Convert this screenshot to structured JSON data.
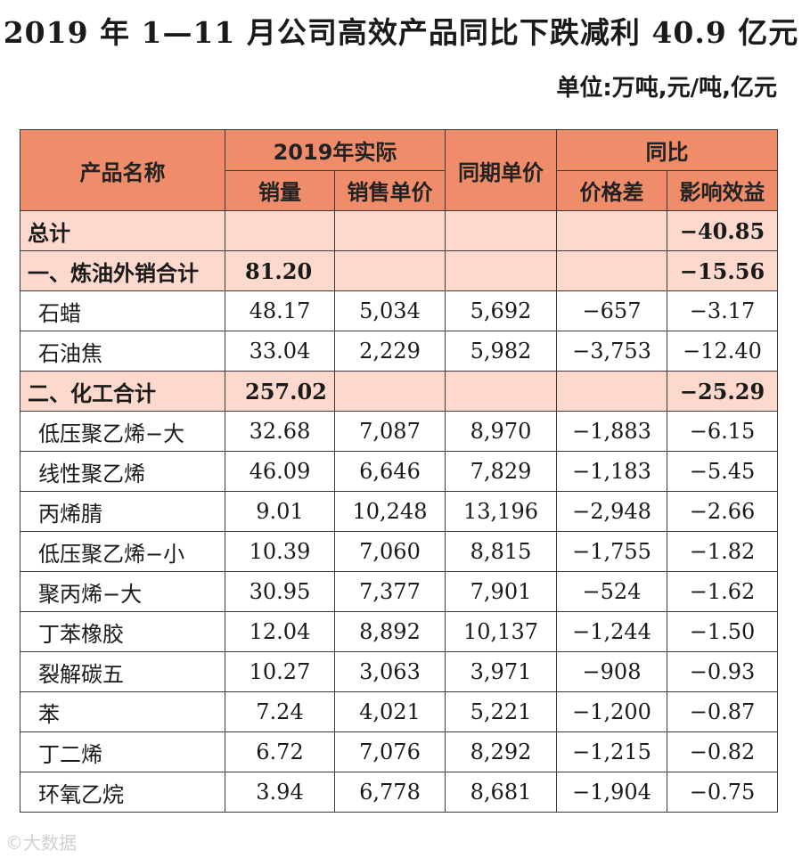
{
  "title": "2019 年 1—11 月公司高效产品同比下跌减利 40.9 亿元",
  "unit": "单位:万吨,元/吨,亿元",
  "header": {
    "product_name": "产品名称",
    "actual_2019": "2019年实际",
    "same_period_price": "同期单价",
    "yoy": "同比",
    "volume": "销量",
    "unit_price": "销售单价",
    "price_diff": "价格差",
    "impact": "影响效益"
  },
  "rows": [
    {
      "type": "total",
      "name": "总计",
      "volume": "",
      "price": "",
      "prior": "",
      "diff": "",
      "impact": "−40.85"
    },
    {
      "type": "total",
      "name": "一、炼油外销合计",
      "volume": "81.20",
      "price": "",
      "prior": "",
      "diff": "",
      "impact": "−15.56"
    },
    {
      "type": "row",
      "name": "石蜡",
      "volume": "48.17",
      "price": "5,034",
      "prior": "5,692",
      "diff": "−657",
      "impact": "−3.17"
    },
    {
      "type": "row",
      "name": "石油焦",
      "volume": "33.04",
      "price": "2,229",
      "prior": "5,982",
      "diff": "−3,753",
      "impact": "−12.40"
    },
    {
      "type": "total",
      "name": "二、化工合计",
      "volume": "257.02",
      "price": "",
      "prior": "",
      "diff": "",
      "impact": "−25.29"
    },
    {
      "type": "row",
      "name": "低压聚乙烯−大",
      "volume": "32.68",
      "price": "7,087",
      "prior": "8,970",
      "diff": "−1,883",
      "impact": "−6.15"
    },
    {
      "type": "row",
      "name": "线性聚乙烯",
      "volume": "46.09",
      "price": "6,646",
      "prior": "7,829",
      "diff": "−1,183",
      "impact": "−5.45"
    },
    {
      "type": "row",
      "name": "丙烯腈",
      "volume": "9.01",
      "price": "10,248",
      "prior": "13,196",
      "diff": "−2,948",
      "impact": "−2.66"
    },
    {
      "type": "row",
      "name": "低压聚乙烯−小",
      "volume": "10.39",
      "price": "7,060",
      "prior": "8,815",
      "diff": "−1,755",
      "impact": "−1.82"
    },
    {
      "type": "row",
      "name": "聚丙烯−大",
      "volume": "30.95",
      "price": "7,377",
      "prior": "7,901",
      "diff": "−524",
      "impact": "−1.62"
    },
    {
      "type": "row",
      "name": "丁苯橡胶",
      "volume": "12.04",
      "price": "8,892",
      "prior": "10,137",
      "diff": "−1,244",
      "impact": "−1.50"
    },
    {
      "type": "row",
      "name": "裂解碳五",
      "volume": "10.27",
      "price": "3,063",
      "prior": "3,971",
      "diff": "−908",
      "impact": "−0.93"
    },
    {
      "type": "row",
      "name": "苯",
      "volume": "7.24",
      "price": "4,021",
      "prior": "5,221",
      "diff": "−1,200",
      "impact": "−0.87"
    },
    {
      "type": "row",
      "name": "丁二烯",
      "volume": "6.72",
      "price": "7,076",
      "prior": "8,292",
      "diff": "−1,215",
      "impact": "−0.82"
    },
    {
      "type": "row",
      "name": "环氧乙烷",
      "volume": "3.94",
      "price": "6,778",
      "prior": "8,681",
      "diff": "−1,904",
      "impact": "−0.75"
    }
  ],
  "colors": {
    "header_bg": "#ef8c6a",
    "total_row_bg": "#fcd9cc"
  },
  "watermark": "©大数据"
}
